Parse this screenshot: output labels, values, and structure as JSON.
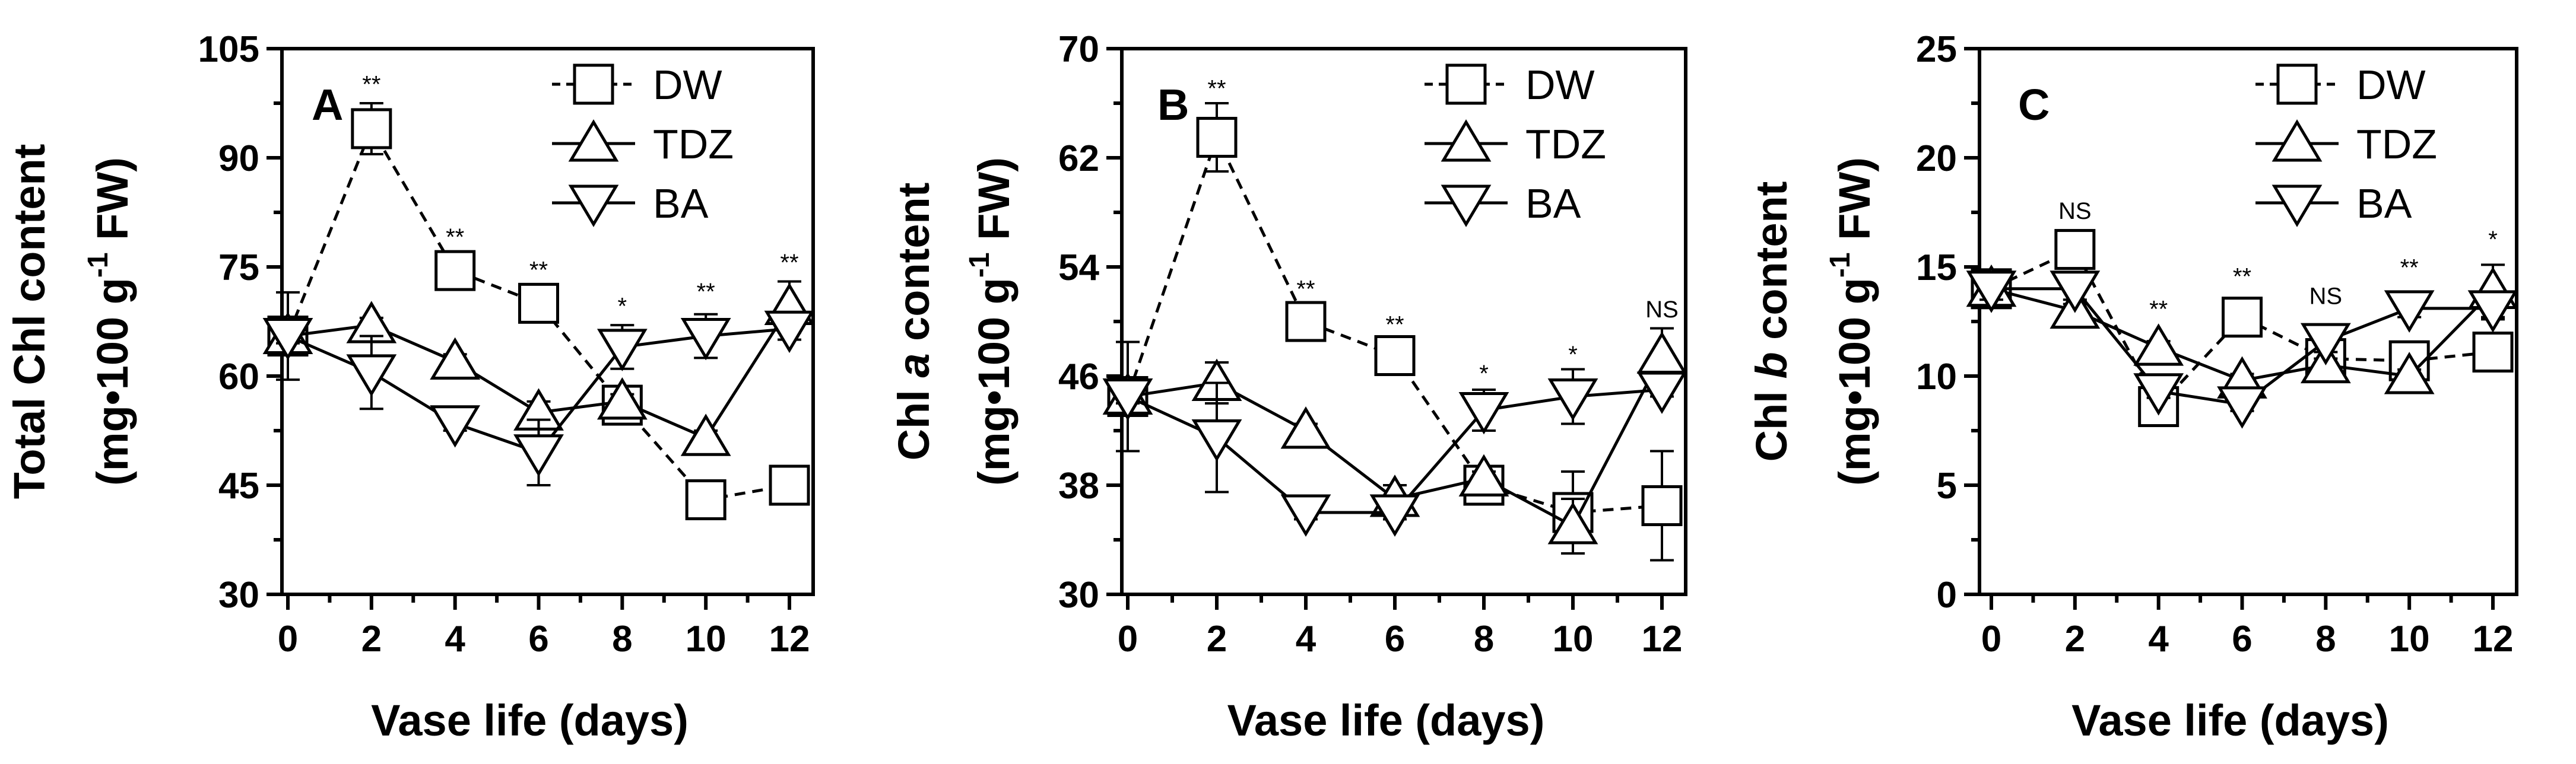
{
  "chart_data": [
    {
      "type": "line",
      "panel_label": "A",
      "x": [
        0,
        2,
        4,
        6,
        8,
        10,
        12
      ],
      "xlabel": "Vase life (days)",
      "ylabel_line1": "Total Chl  content",
      "ylabel_line2_pre": "(mg•100 g",
      "ylabel_sup": "-1",
      "ylabel_line2_post": " FW)",
      "xlim": [
        0,
        12
      ],
      "ylim": [
        30,
        105
      ],
      "xticks": [
        0,
        2,
        4,
        6,
        8,
        10,
        12
      ],
      "yticks": [
        30,
        45,
        60,
        75,
        90,
        105
      ],
      "legend_position": "top-right",
      "series": [
        {
          "name": "DW",
          "marker": "square",
          "dashed": true,
          "values": [
            65.5,
            94,
            74.5,
            70,
            56,
            43,
            45
          ],
          "errors": [
            6,
            3.5,
            1.5,
            1.5,
            2,
            2.5,
            2.5
          ]
        },
        {
          "name": "TDZ",
          "marker": "triangle-up",
          "dashed": false,
          "values": [
            65.5,
            67,
            62,
            55,
            56.5,
            51.5,
            69.5
          ],
          "errors": [
            1,
            1,
            1,
            1.5,
            1,
            1,
            3.5
          ]
        },
        {
          "name": "BA",
          "marker": "triangle-down",
          "dashed": false,
          "values": [
            65.5,
            60.5,
            53.5,
            49.5,
            64,
            65.5,
            66.5
          ],
          "errors": [
            1,
            5,
            1,
            4.5,
            3,
            3,
            1.5
          ]
        }
      ],
      "significance": [
        {
          "x": 2,
          "y": 99,
          "label": "**"
        },
        {
          "x": 4,
          "y": 78,
          "label": "**"
        },
        {
          "x": 6,
          "y": 73.5,
          "label": "**"
        },
        {
          "x": 8,
          "y": 68.5,
          "label": "*"
        },
        {
          "x": 10,
          "y": 70.5,
          "label": "**"
        },
        {
          "x": 12,
          "y": 74.5,
          "label": "**"
        }
      ]
    },
    {
      "type": "line",
      "panel_label": "B",
      "x": [
        0,
        2,
        4,
        6,
        8,
        10,
        12
      ],
      "xlabel": "Vase life (days)",
      "ylabel_line1_pre": "Chl ",
      "ylabel_line1_italic": "a",
      "ylabel_line1_post": " content",
      "ylabel_line2_pre": "(mg•100 g",
      "ylabel_sup": "-1",
      "ylabel_line2_post": " FW)",
      "xlim": [
        0,
        12
      ],
      "ylim": [
        30,
        70
      ],
      "xticks": [
        0,
        2,
        4,
        6,
        8,
        10,
        12
      ],
      "yticks": [
        30,
        38,
        46,
        54,
        62,
        70
      ],
      "legend_position": "top-right",
      "series": [
        {
          "name": "DW",
          "marker": "square",
          "dashed": true,
          "values": [
            44.5,
            63.5,
            50,
            47.5,
            38,
            36,
            36.5
          ],
          "errors": [
            4,
            2.5,
            1,
            1,
            1,
            3,
            4
          ]
        },
        {
          "name": "TDZ",
          "marker": "triangle-up",
          "dashed": false,
          "values": [
            44.5,
            45.5,
            42,
            37,
            38.5,
            35,
            47.5
          ],
          "errors": [
            0.5,
            1.5,
            0.5,
            1,
            0.5,
            2,
            2
          ]
        },
        {
          "name": "BA",
          "marker": "triangle-down",
          "dashed": false,
          "values": [
            44.5,
            41.5,
            36,
            36,
            43.5,
            44.5,
            45
          ],
          "errors": [
            0.5,
            4,
            0.5,
            0.5,
            1.5,
            2,
            0.5
          ]
        }
      ],
      "significance": [
        {
          "x": 2,
          "y": 66.5,
          "label": "**"
        },
        {
          "x": 4,
          "y": 51.8,
          "label": "**"
        },
        {
          "x": 6,
          "y": 49.2,
          "label": "**"
        },
        {
          "x": 8,
          "y": 45.6,
          "label": "*"
        },
        {
          "x": 10,
          "y": 47,
          "label": "*"
        },
        {
          "x": 12,
          "y": 50.3,
          "label": "NS"
        }
      ]
    },
    {
      "type": "line",
      "panel_label": "C",
      "x": [
        0,
        2,
        4,
        6,
        8,
        10,
        12
      ],
      "xlabel": "Vase life (days)",
      "ylabel_line1_pre": "Chl ",
      "ylabel_line1_italic": "b",
      "ylabel_line1_post": " content",
      "ylabel_line2_pre": "(mg•100 g",
      "ylabel_sup": "-1",
      "ylabel_line2_post": " FW)",
      "xlim": [
        0,
        12
      ],
      "ylim": [
        0,
        25
      ],
      "xticks": [
        0,
        2,
        4,
        6,
        8,
        10,
        12
      ],
      "yticks": [
        0,
        5,
        10,
        15,
        20,
        25
      ],
      "legend_position": "top-right",
      "series": [
        {
          "name": "DW",
          "marker": "square",
          "dashed": true,
          "values": [
            14,
            15.8,
            8.6,
            12.7,
            10.8,
            10.7,
            11.1
          ],
          "errors": [
            0.7,
            0.5,
            0.4,
            0.3,
            0.4,
            0.3,
            0.8
          ]
        },
        {
          "name": "TDZ",
          "marker": "triangle-up",
          "dashed": false,
          "values": [
            14,
            13,
            11.3,
            9.8,
            10.5,
            10,
            13.9
          ],
          "errors": [
            0.5,
            0.3,
            0.3,
            0.3,
            0.3,
            0.3,
            1.2
          ]
        },
        {
          "name": "BA",
          "marker": "triangle-down",
          "dashed": false,
          "values": [
            14,
            14,
            9.3,
            8.7,
            11.6,
            13.1,
            13.1
          ],
          "errors": [
            0.5,
            0.5,
            0.3,
            0.3,
            0.5,
            0.4,
            0.5
          ]
        }
      ],
      "significance": [
        {
          "x": 2,
          "y": 17.2,
          "label": "NS"
        },
        {
          "x": 4,
          "y": 12.7,
          "label": "**"
        },
        {
          "x": 6,
          "y": 14.2,
          "label": "**"
        },
        {
          "x": 8,
          "y": 13.3,
          "label": "NS"
        },
        {
          "x": 10,
          "y": 14.6,
          "label": "**"
        },
        {
          "x": 12,
          "y": 15.9,
          "label": "*"
        }
      ]
    }
  ]
}
